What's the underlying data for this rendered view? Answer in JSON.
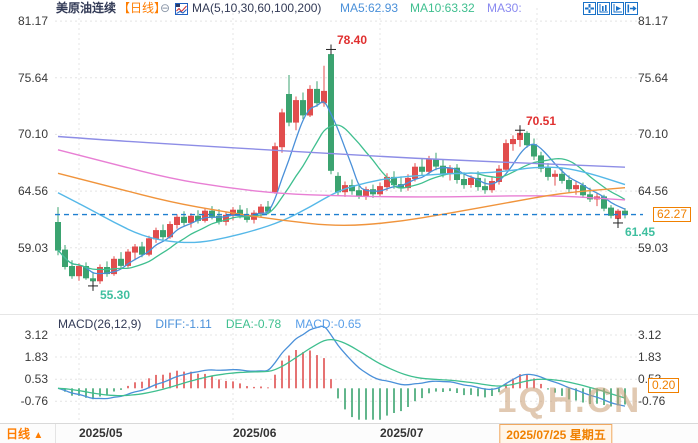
{
  "header": {
    "symbol": "美原油连续",
    "period_tag": "【日线】",
    "collapse_icon": "⊖",
    "ma_settings": "MA(5,10,30,60,100,200)",
    "ma_values": [
      {
        "label": "MA5:62.93",
        "color": "#4a90d9"
      },
      {
        "label": "MA10:63.32",
        "color": "#3fbf8f"
      },
      {
        "label": "MA30:",
        "color": "#8a8af0"
      }
    ]
  },
  "toolbar": {
    "buttons": [
      "pan-tool",
      "y-axis-scale",
      "auto-scroll",
      "jump-to-latest"
    ],
    "icon_color": "#1a72c8"
  },
  "macd_panel": {
    "title": "MACD(26,12,9)",
    "diff_label": "DIFF:-1.11",
    "dea_label": "DEA:-0.78",
    "macd_label": "MACD:-0.65",
    "title_color": "#323a56",
    "diff_color": "#4a90d9",
    "dea_color": "#3fbf8f",
    "macd_color": "#5a9fe8",
    "current_badge": "0.20"
  },
  "footer": {
    "period_label": "日线",
    "arrow": "▲"
  },
  "watermark": "1QH.CN",
  "price_badge": "62.27",
  "chart_data": {
    "type": "candlestick",
    "title": "美原油连续 日线",
    "panels": [
      "price",
      "macd(26,12,9)"
    ],
    "price_axis_ticks": [
      81.17,
      75.64,
      70.1,
      64.56,
      59.03
    ],
    "price_axis_range": [
      52.85,
      82.45
    ],
    "macd_axis_ticks": [
      3.12,
      1.83,
      0.53,
      -0.76
    ],
    "macd_axis_range": [
      -1.86,
      4.0
    ],
    "grid": "dotted",
    "x_ticks": [
      {
        "label": "2025/05",
        "index": 3
      },
      {
        "label": "2025/06",
        "index": 25
      },
      {
        "label": "2025/07",
        "index": 46
      }
    ],
    "x_highlight": {
      "label": "2025/07/25 星期五",
      "index": 68
    },
    "last_price": 62.27,
    "macd_params": {
      "slow": 26,
      "fast": 12,
      "signal": 9
    },
    "colors": {
      "up": "#e14d4d",
      "down": "#3ba370",
      "diff": "#4a90d9",
      "dea": "#3fbf8f",
      "hist_pos": "#e05050",
      "hist_neg": "#3ba370",
      "price_line": "#1f7fd0",
      "grid": "#e4e4e4",
      "cross": "#222222"
    },
    "annotations": [
      {
        "text": "78.40",
        "type": "high",
        "index": 39,
        "price": 78.4,
        "color": "#e03030"
      },
      {
        "text": "70.51",
        "type": "high",
        "index": 66,
        "price": 70.51,
        "color": "#e03030"
      },
      {
        "text": "55.30",
        "type": "low",
        "index": 5,
        "price": 55.3,
        "color": "#3fbf9f"
      },
      {
        "text": "61.45",
        "type": "low",
        "index": 80,
        "price": 61.45,
        "color": "#3fbf9f"
      }
    ],
    "ma_computed": [
      {
        "name": "MA5",
        "window": 5,
        "color": "#4a90d9"
      },
      {
        "name": "MA10",
        "window": 10,
        "color": "#3fbf8f"
      }
    ],
    "ma_overlays": [
      {
        "name": "MA30",
        "color": "#55b8e8",
        "points": [
          [
            0,
            64.4
          ],
          [
            4,
            63.0
          ],
          [
            8,
            61.5
          ],
          [
            12,
            60.2
          ],
          [
            16,
            59.6
          ],
          [
            20,
            59.5
          ],
          [
            24,
            60.0
          ],
          [
            28,
            60.7
          ],
          [
            32,
            61.6
          ],
          [
            36,
            63.0
          ],
          [
            40,
            64.6
          ],
          [
            44,
            65.4
          ],
          [
            48,
            65.9
          ],
          [
            52,
            66.1
          ],
          [
            56,
            66.3
          ],
          [
            60,
            66.3
          ],
          [
            64,
            66.5
          ],
          [
            68,
            66.9
          ],
          [
            72,
            66.9
          ],
          [
            76,
            66.3
          ],
          [
            81,
            65.2
          ]
        ]
      },
      {
        "name": "MA60",
        "color": "#e87fd4",
        "points": [
          [
            0,
            68.6
          ],
          [
            8,
            67.2
          ],
          [
            16,
            65.8
          ],
          [
            24,
            64.9
          ],
          [
            32,
            64.3
          ],
          [
            40,
            64.1
          ],
          [
            48,
            64.0
          ],
          [
            56,
            64.0
          ],
          [
            64,
            64.1
          ],
          [
            72,
            64.1
          ],
          [
            81,
            63.7
          ]
        ]
      },
      {
        "name": "MA100",
        "color": "#f0943c",
        "points": [
          [
            0,
            66.3
          ],
          [
            8,
            64.9
          ],
          [
            16,
            63.5
          ],
          [
            24,
            62.5
          ],
          [
            32,
            61.7
          ],
          [
            40,
            61.1
          ],
          [
            48,
            61.5
          ],
          [
            56,
            62.4
          ],
          [
            64,
            63.4
          ],
          [
            72,
            64.4
          ],
          [
            81,
            64.9
          ]
        ]
      },
      {
        "name": "MA200",
        "color": "#8d8de6",
        "points": [
          [
            0,
            69.9
          ],
          [
            10,
            69.4
          ],
          [
            20,
            69.0
          ],
          [
            30,
            68.6
          ],
          [
            40,
            68.2
          ],
          [
            50,
            67.8
          ],
          [
            60,
            67.5
          ],
          [
            70,
            67.2
          ],
          [
            81,
            66.9
          ]
        ]
      }
    ],
    "candles": [
      [
        61.5,
        63.0,
        58.3,
        58.8
      ],
      [
        58.8,
        59.3,
        56.9,
        57.2
      ],
      [
        57.2,
        57.8,
        56.0,
        56.3
      ],
      [
        56.3,
        57.5,
        55.8,
        57.2
      ],
      [
        57.2,
        57.6,
        55.9,
        56.1
      ],
      [
        56.0,
        56.6,
        55.3,
        55.8
      ],
      [
        55.8,
        57.4,
        55.5,
        57.1
      ],
      [
        57.1,
        57.7,
        56.2,
        56.5
      ],
      [
        56.5,
        58.2,
        56.3,
        57.9
      ],
      [
        57.9,
        58.6,
        57.0,
        57.3
      ],
      [
        57.3,
        58.9,
        57.1,
        58.6
      ],
      [
        58.6,
        59.4,
        57.8,
        59.1
      ],
      [
        59.1,
        59.6,
        58.1,
        58.4
      ],
      [
        58.4,
        60.2,
        58.2,
        59.9
      ],
      [
        59.9,
        61.0,
        59.5,
        60.7
      ],
      [
        60.7,
        61.3,
        59.8,
        60.1
      ],
      [
        60.1,
        61.6,
        59.9,
        61.3
      ],
      [
        61.3,
        62.3,
        60.9,
        62.0
      ],
      [
        62.0,
        62.6,
        61.2,
        61.5
      ],
      [
        61.5,
        62.4,
        61.0,
        62.1
      ],
      [
        62.1,
        62.7,
        61.4,
        61.7
      ],
      [
        61.7,
        62.9,
        61.5,
        62.6
      ],
      [
        62.6,
        63.1,
        61.8,
        62.1
      ],
      [
        62.1,
        62.8,
        61.3,
        61.6
      ],
      [
        61.6,
        62.5,
        61.2,
        62.2
      ],
      [
        62.2,
        63.0,
        61.7,
        62.7
      ],
      [
        62.7,
        63.2,
        61.9,
        62.2
      ],
      [
        62.2,
        62.9,
        61.5,
        61.8
      ],
      [
        61.8,
        62.7,
        61.4,
        62.4
      ],
      [
        62.4,
        63.3,
        62.0,
        63.0
      ],
      [
        63.0,
        63.6,
        62.3,
        62.6
      ],
      [
        64.5,
        69.3,
        64.3,
        68.9
      ],
      [
        68.9,
        72.6,
        68.3,
        72.2
      ],
      [
        74.0,
        75.9,
        70.9,
        71.3
      ],
      [
        71.3,
        73.8,
        70.5,
        73.4
      ],
      [
        73.4,
        74.2,
        71.6,
        72.0
      ],
      [
        72.0,
        74.9,
        71.8,
        74.5
      ],
      [
        74.5,
        75.3,
        72.8,
        73.2
      ],
      [
        73.2,
        76.8,
        72.8,
        74.3
      ],
      [
        77.9,
        78.4,
        66.2,
        66.6
      ],
      [
        66.0,
        66.4,
        64.1,
        64.5
      ],
      [
        64.5,
        65.5,
        64.0,
        65.1
      ],
      [
        65.1,
        65.7,
        64.2,
        64.6
      ],
      [
        64.6,
        65.3,
        63.8,
        64.1
      ],
      [
        64.1,
        65.0,
        63.7,
        64.7
      ],
      [
        64.7,
        65.2,
        63.9,
        64.3
      ],
      [
        64.3,
        65.4,
        64.0,
        65.0
      ],
      [
        65.0,
        66.3,
        64.6,
        65.9
      ],
      [
        65.9,
        66.5,
        64.8,
        65.2
      ],
      [
        65.2,
        66.0,
        64.5,
        64.9
      ],
      [
        64.9,
        66.2,
        64.6,
        65.8
      ],
      [
        65.8,
        67.3,
        65.5,
        66.9
      ],
      [
        66.9,
        67.8,
        66.1,
        66.5
      ],
      [
        66.5,
        68.0,
        66.2,
        67.6
      ],
      [
        67.6,
        68.3,
        66.6,
        67.0
      ],
      [
        67.0,
        67.7,
        65.9,
        66.3
      ],
      [
        66.3,
        67.1,
        65.6,
        66.8
      ],
      [
        66.8,
        67.2,
        65.3,
        65.7
      ],
      [
        65.7,
        66.4,
        64.8,
        65.2
      ],
      [
        65.2,
        66.1,
        64.9,
        65.8
      ],
      [
        65.8,
        66.5,
        64.6,
        65.0
      ],
      [
        65.0,
        65.8,
        64.3,
        64.7
      ],
      [
        64.7,
        65.9,
        64.4,
        65.5
      ],
      [
        65.5,
        67.1,
        65.2,
        66.7
      ],
      [
        66.7,
        69.6,
        66.5,
        69.2
      ],
      [
        69.2,
        70.0,
        68.5,
        69.6
      ],
      [
        69.6,
        70.51,
        68.9,
        70.2
      ],
      [
        70.2,
        70.4,
        68.8,
        69.1
      ],
      [
        69.1,
        69.7,
        67.6,
        68.0
      ],
      [
        68.0,
        68.4,
        66.4,
        66.8
      ],
      [
        66.8,
        67.3,
        65.6,
        66.0
      ],
      [
        66.0,
        66.6,
        65.1,
        66.2
      ],
      [
        66.2,
        66.8,
        65.3,
        65.6
      ],
      [
        65.6,
        66.1,
        64.4,
        64.8
      ],
      [
        64.8,
        65.5,
        64.2,
        65.1
      ],
      [
        65.1,
        65.4,
        63.9,
        64.2
      ],
      [
        64.2,
        64.9,
        63.5,
        63.8
      ],
      [
        63.8,
        64.4,
        63.1,
        64.0
      ],
      [
        64.0,
        64.2,
        62.6,
        62.9
      ],
      [
        62.9,
        63.2,
        61.9,
        62.2
      ],
      [
        61.9,
        62.8,
        61.45,
        62.6
      ],
      [
        62.6,
        62.9,
        61.9,
        62.27
      ]
    ]
  }
}
